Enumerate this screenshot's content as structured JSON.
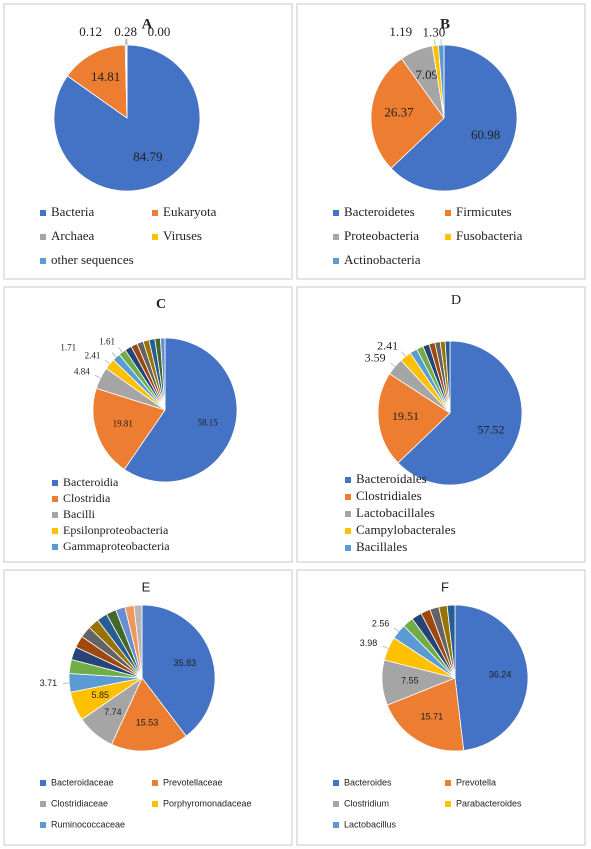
{
  "chart_data": [
    {
      "type": "pie",
      "title": "A",
      "categories": [
        "Bacteria",
        "Eukaryota",
        "Archaea",
        "Viruses",
        "other sequences"
      ],
      "values": [
        84.79,
        14.81,
        0.28,
        0.12,
        0.0
      ],
      "value_labels": [
        "84.79",
        "14.81",
        "0.28",
        "0.12",
        "0.00"
      ],
      "colors": [
        "#4472c4",
        "#ed7d31",
        "#a5a5a5",
        "#ffc000",
        "#5b9bd5"
      ]
    },
    {
      "type": "pie",
      "title": "B",
      "categories": [
        "Bacteroidetes",
        "Firmicutes",
        "Proteobacteria",
        "Fusobacteria",
        "Actinobacteria"
      ],
      "values": [
        60.98,
        26.37,
        7.09,
        1.3,
        1.19
      ],
      "value_labels": [
        "60.98",
        "26.37",
        "7.09",
        "1.30",
        "1.19"
      ],
      "colors": [
        "#4472c4",
        "#ed7d31",
        "#a5a5a5",
        "#ffc000",
        "#5b9bd5"
      ]
    },
    {
      "type": "pie",
      "title": "C",
      "categories": [
        "Bacteroidia",
        "Clostridia",
        "Bacilli",
        "Epsilonproteobacteria",
        "Gammaproteobacteria",
        null,
        null,
        null,
        null,
        null,
        null,
        null,
        null
      ],
      "values": [
        58.15,
        19.81,
        4.84,
        2.41,
        1.71,
        1.61,
        1.5,
        1.4,
        1.4,
        1.3,
        1.3,
        1.2,
        1.0
      ],
      "value_labels": [
        "58.15",
        "19.81",
        "4.84",
        "2.41",
        "1.71",
        "1.61",
        null,
        null,
        null,
        null,
        null,
        null,
        null
      ],
      "colors": [
        "#4472c4",
        "#ed7d31",
        "#a5a5a5",
        "#ffc000",
        "#5b9bd5",
        "#70ad47",
        "#264478",
        "#9e480e",
        "#636363",
        "#997300",
        "#255e91",
        "#43682b",
        "#698ed0"
      ]
    },
    {
      "type": "pie",
      "title": "D",
      "categories": [
        "Bacteroidales",
        "Clostridiales",
        "Lactobacillales",
        "Campylobacterales",
        "Bacillales",
        null,
        null,
        null,
        null,
        null,
        null
      ],
      "values": [
        57.52,
        19.51,
        3.59,
        2.41,
        1.5,
        1.4,
        1.3,
        1.2,
        1.1,
        1.0,
        1.0
      ],
      "value_labels": [
        "57.52",
        "19.51",
        "3.59",
        "2.41",
        null,
        null,
        null,
        null,
        null,
        null,
        null
      ],
      "colors": [
        "#4472c4",
        "#ed7d31",
        "#a5a5a5",
        "#ffc000",
        "#5b9bd5",
        "#70ad47",
        "#264478",
        "#9e480e",
        "#636363",
        "#997300",
        "#255e91"
      ]
    },
    {
      "type": "pie",
      "title": "E",
      "categories": [
        "Bacteroidaceae",
        "Prevotellaceae",
        "Clostridiaceae",
        "Porphyromonadaceae",
        "Ruminococcaceae",
        null,
        null,
        null,
        null,
        null,
        null,
        null,
        null,
        null,
        null
      ],
      "values": [
        35.83,
        15.53,
        7.74,
        5.85,
        3.71,
        2.8,
        2.6,
        2.4,
        2.3,
        2.2,
        2.1,
        2.0,
        1.9,
        1.8,
        1.6
      ],
      "value_labels": [
        "35.83",
        "15.53",
        "7.74",
        "5.85",
        "3.71",
        null,
        null,
        null,
        null,
        null,
        null,
        null,
        null,
        null,
        null
      ],
      "colors": [
        "#4472c4",
        "#ed7d31",
        "#a5a5a5",
        "#ffc000",
        "#5b9bd5",
        "#70ad47",
        "#264478",
        "#9e480e",
        "#636363",
        "#997300",
        "#255e91",
        "#43682b",
        "#698ed0",
        "#f1975a",
        "#b7b7b7"
      ]
    },
    {
      "type": "pie",
      "title": "F",
      "categories": [
        "Bacteroides",
        "Prevotella",
        "Clostridium",
        "Parabacteroides",
        "Lactobacillus",
        null,
        null,
        null,
        null,
        null,
        null
      ],
      "values": [
        36.24,
        15.71,
        7.55,
        3.98,
        2.56,
        1.8,
        1.7,
        1.6,
        1.5,
        1.4,
        1.3
      ],
      "value_labels": [
        "36.24",
        "15.71",
        "7.55",
        "3.98",
        "2.56",
        null,
        null,
        null,
        null,
        null,
        null
      ],
      "colors": [
        "#4472c4",
        "#ed7d31",
        "#a5a5a5",
        "#ffc000",
        "#5b9bd5",
        "#70ad47",
        "#264478",
        "#9e480e",
        "#636363",
        "#997300",
        "#255e91"
      ]
    }
  ]
}
